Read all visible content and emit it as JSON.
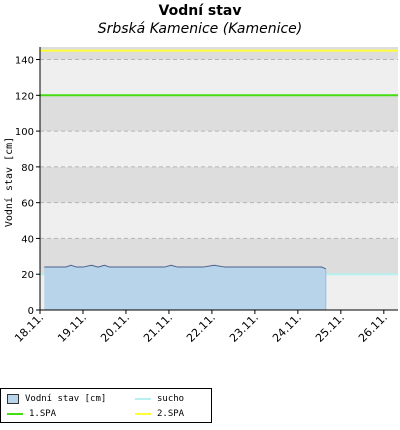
{
  "chart_data": {
    "type": "area",
    "title": "Vodní stav",
    "subtitle": "Srbská Kamenice (Kamenice)",
    "ylabel": "Vodní stav [cm]",
    "xlabel": "",
    "ylim": [
      0,
      147
    ],
    "yticks": [
      0,
      20,
      40,
      60,
      80,
      100,
      120,
      140
    ],
    "xlim": [
      "2012-11-18",
      "2012-11-26 08:00"
    ],
    "xticks": [
      "18.11.",
      "19.11.",
      "20.11.",
      "21.11.",
      "22.11.",
      "23.11.",
      "24.11.",
      "25.11.",
      "26.11."
    ],
    "grid": true,
    "series": [
      {
        "name": "Vodní stav [cm]",
        "kind": "area",
        "color": "#b8d4ea",
        "line_color": "#4a5f8a",
        "x_days": [
          0.1,
          0.3,
          0.6,
          0.72,
          0.85,
          1.0,
          1.2,
          1.35,
          1.5,
          1.62,
          1.8,
          2.0,
          2.3,
          2.6,
          2.9,
          3.05,
          3.2,
          3.5,
          3.8,
          4.05,
          4.3,
          4.6,
          5.0,
          5.4,
          5.8,
          6.2,
          6.55,
          6.65
        ],
        "values": [
          24,
          24,
          24,
          25,
          24,
          24,
          25,
          24,
          25,
          24,
          24,
          24,
          24,
          24,
          24,
          25,
          24,
          24,
          24,
          25,
          24,
          24,
          24,
          24,
          24,
          24,
          24,
          23
        ]
      },
      {
        "name": "sucho",
        "kind": "hline",
        "value": 20,
        "color": "#b6f0f0"
      },
      {
        "name": "1.SPA",
        "kind": "hline",
        "value": 120,
        "color": "#44dd11"
      },
      {
        "name": "2.SPA",
        "kind": "hline",
        "value": 145,
        "color": "#ffff33"
      }
    ]
  },
  "colors": {
    "band_light": "#efefef",
    "band_dark": "#dddddd",
    "grid": "#b5b5b5"
  }
}
